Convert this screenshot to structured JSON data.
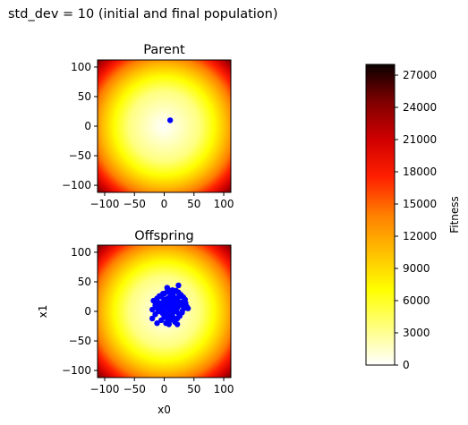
{
  "suptitle": "std_dev = 10 (initial and final population)",
  "colormap": "hot_r",
  "chart_data": [
    {
      "type": "heatmap+scatter",
      "title": "Parent",
      "xlabel": "",
      "ylabel": "",
      "xlim": [
        -112,
        112
      ],
      "ylim": [
        -112,
        112
      ],
      "xticks": [
        -100,
        -50,
        0,
        50,
        100
      ],
      "yticks": [
        -100,
        -50,
        0,
        50,
        100
      ],
      "xtick_labels": [
        "−100",
        "−50",
        "0",
        "50",
        "100"
      ],
      "ytick_labels": [
        "−100",
        "−50",
        "0",
        "50",
        "100"
      ],
      "heatmap": {
        "function": "x0^2 + x1^2",
        "zmin": 0,
        "zmax": 28000
      },
      "series": [
        {
          "color": "#0000ff",
          "points": [
            [
              10,
              10
            ]
          ]
        }
      ]
    },
    {
      "type": "heatmap+scatter",
      "title": "Offspring",
      "xlabel": "x0",
      "ylabel": "x1",
      "xlim": [
        -112,
        112
      ],
      "ylim": [
        -112,
        112
      ],
      "xticks": [
        -100,
        -50,
        0,
        50,
        100
      ],
      "yticks": [
        -100,
        -50,
        0,
        50,
        100
      ],
      "xtick_labels": [
        "−100",
        "−50",
        "0",
        "50",
        "100"
      ],
      "ytick_labels": [
        "−100",
        "−50",
        "0",
        "50",
        "100"
      ],
      "heatmap": {
        "function": "x0^2 + x1^2",
        "zmin": 0,
        "zmax": 28000
      },
      "series": [
        {
          "color": "#0000ff",
          "points": [
            [
              10,
              10
            ],
            [
              0,
              0
            ],
            [
              5,
              15
            ],
            [
              15,
              5
            ],
            [
              20,
              20
            ],
            [
              -5,
              5
            ],
            [
              5,
              -5
            ],
            [
              25,
              10
            ],
            [
              10,
              25
            ],
            [
              -10,
              15
            ],
            [
              15,
              -10
            ],
            [
              30,
              15
            ],
            [
              15,
              30
            ],
            [
              0,
              20
            ],
            [
              20,
              0
            ],
            [
              -10,
              0
            ],
            [
              0,
              -10
            ],
            [
              25,
              25
            ],
            [
              -5,
              25
            ],
            [
              25,
              -5
            ],
            [
              30,
              0
            ],
            [
              0,
              30
            ],
            [
              10,
              -15
            ],
            [
              -15,
              10
            ],
            [
              35,
              10
            ],
            [
              10,
              35
            ],
            [
              20,
              35
            ],
            [
              35,
              20
            ],
            [
              -5,
              -15
            ],
            [
              -15,
              -5
            ],
            [
              5,
              5
            ],
            [
              12,
              8
            ],
            [
              8,
              12
            ],
            [
              18,
              14
            ],
            [
              14,
              18
            ],
            [
              22,
              6
            ],
            [
              6,
              22
            ],
            [
              -8,
              8
            ],
            [
              8,
              -8
            ],
            [
              28,
              28
            ],
            [
              2,
              12
            ],
            [
              12,
              2
            ],
            [
              16,
              24
            ],
            [
              24,
              16
            ],
            [
              -12,
              22
            ],
            [
              22,
              -12
            ],
            [
              3,
              -20
            ],
            [
              -20,
              3
            ],
            [
              33,
              5
            ],
            [
              5,
              33
            ],
            [
              10,
              0
            ],
            [
              0,
              10
            ],
            [
              27,
              12
            ],
            [
              12,
              27
            ],
            [
              -2,
              30
            ],
            [
              30,
              -2
            ],
            [
              18,
              -18
            ],
            [
              -18,
              18
            ],
            [
              38,
              8
            ],
            [
              8,
              -22
            ],
            [
              24,
              44
            ],
            [
              22,
              -22
            ],
            [
              -12,
              -20
            ],
            [
              -20,
              -12
            ],
            [
              40,
              5
            ],
            [
              5,
              40
            ],
            [
              15,
              15
            ],
            [
              20,
              10
            ],
            [
              10,
              20
            ],
            [
              -3,
              -3
            ],
            [
              32,
              24
            ],
            [
              24,
              32
            ],
            [
              -8,
              26
            ],
            [
              26,
              -8
            ],
            [
              14,
              -4
            ],
            [
              -4,
              14
            ],
            [
              36,
              14
            ],
            [
              14,
              36
            ],
            [
              6,
              -12
            ],
            [
              -12,
              6
            ]
          ]
        }
      ]
    },
    {
      "type": "colorbar",
      "label": "Fitness",
      "range": [
        0,
        28000
      ],
      "ticks": [
        0,
        3000,
        6000,
        9000,
        12000,
        15000,
        18000,
        21000,
        24000,
        27000
      ],
      "tick_labels": [
        "0",
        "3000",
        "6000",
        "9000",
        "12000",
        "15000",
        "18000",
        "21000",
        "24000",
        "27000"
      ]
    }
  ]
}
